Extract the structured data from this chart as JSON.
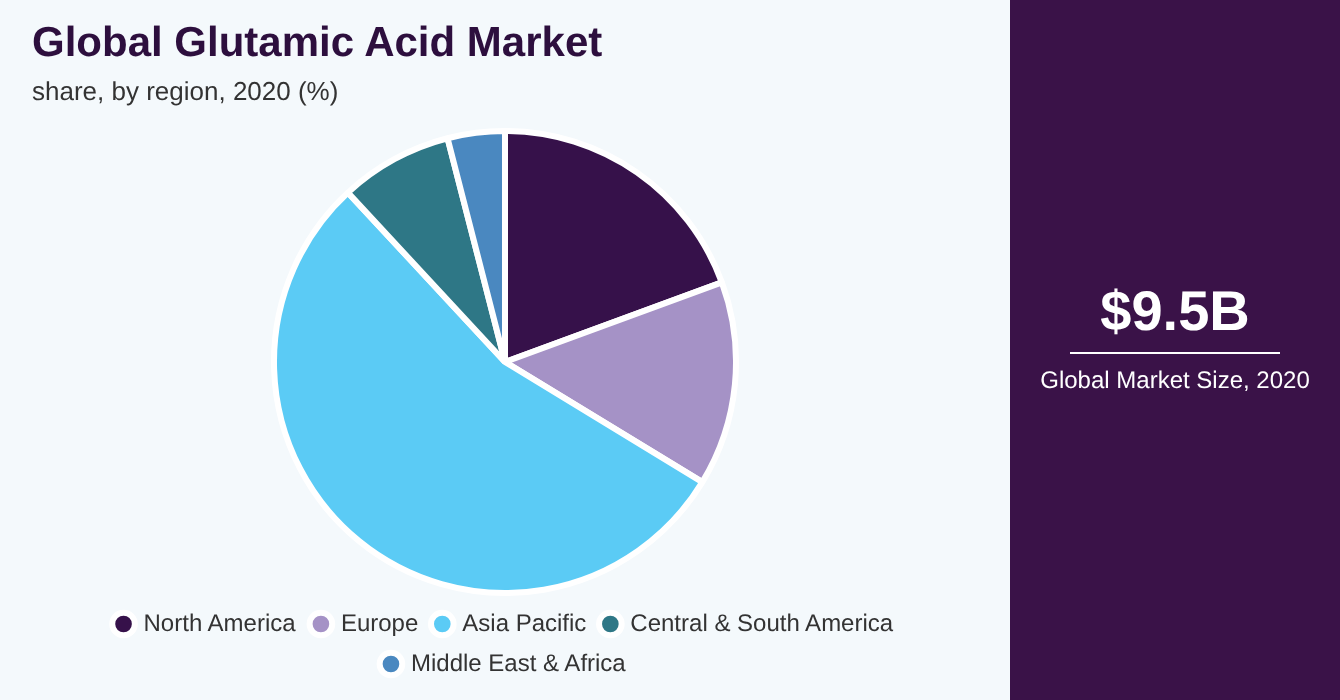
{
  "chart_data": {
    "type": "pie",
    "title": "Global Glutamic Acid Market",
    "subtitle": "share, by region, 2020 (%)",
    "categories": [
      "North America",
      "Europe",
      "Asia Pacific",
      "Central & South America",
      "Middle East & Africa"
    ],
    "values": [
      19.4,
      14.3,
      54.4,
      7.9,
      4.0
    ],
    "colors": [
      "#36114a",
      "#a592c6",
      "#5bcbf5",
      "#2e7786",
      "#4a88c0"
    ],
    "legend": "bottom",
    "annotations": [
      "$9.5B",
      "Global Market Size, 2020"
    ]
  }
}
